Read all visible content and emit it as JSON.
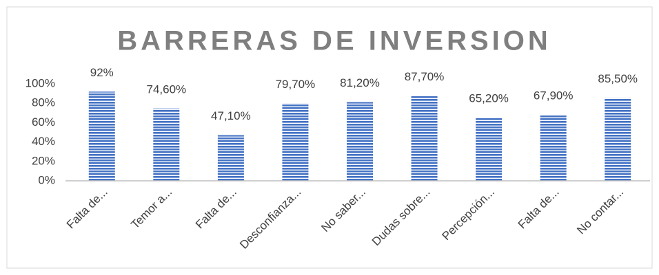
{
  "chart_data": {
    "type": "bar",
    "title": "BARRERAS DE INVERSION",
    "categories": [
      "Falta de...",
      "Temor a...",
      "Falta de...",
      "Desconfianza...",
      "No saber...",
      "Dudas sobre...",
      "Percepción...",
      "Falta de...",
      "No contar..."
    ],
    "values": [
      92,
      74.6,
      47.1,
      79.7,
      81.2,
      87.7,
      65.2,
      67.9,
      85.5
    ],
    "value_labels": [
      "92%",
      "74,60%",
      "47,10%",
      "79,70%",
      "81,20%",
      "87,70%",
      "65,20%",
      "67,90%",
      "85,50%"
    ],
    "color": "#4472c4",
    "ylim": [
      0,
      100
    ],
    "yticks": [
      {
        "value": 0,
        "label": "0%"
      },
      {
        "value": 20,
        "label": "20%"
      },
      {
        "value": 40,
        "label": "40%"
      },
      {
        "value": 60,
        "label": "60%"
      },
      {
        "value": 80,
        "label": "80%"
      },
      {
        "value": 100,
        "label": "100%"
      }
    ],
    "grid": false
  }
}
